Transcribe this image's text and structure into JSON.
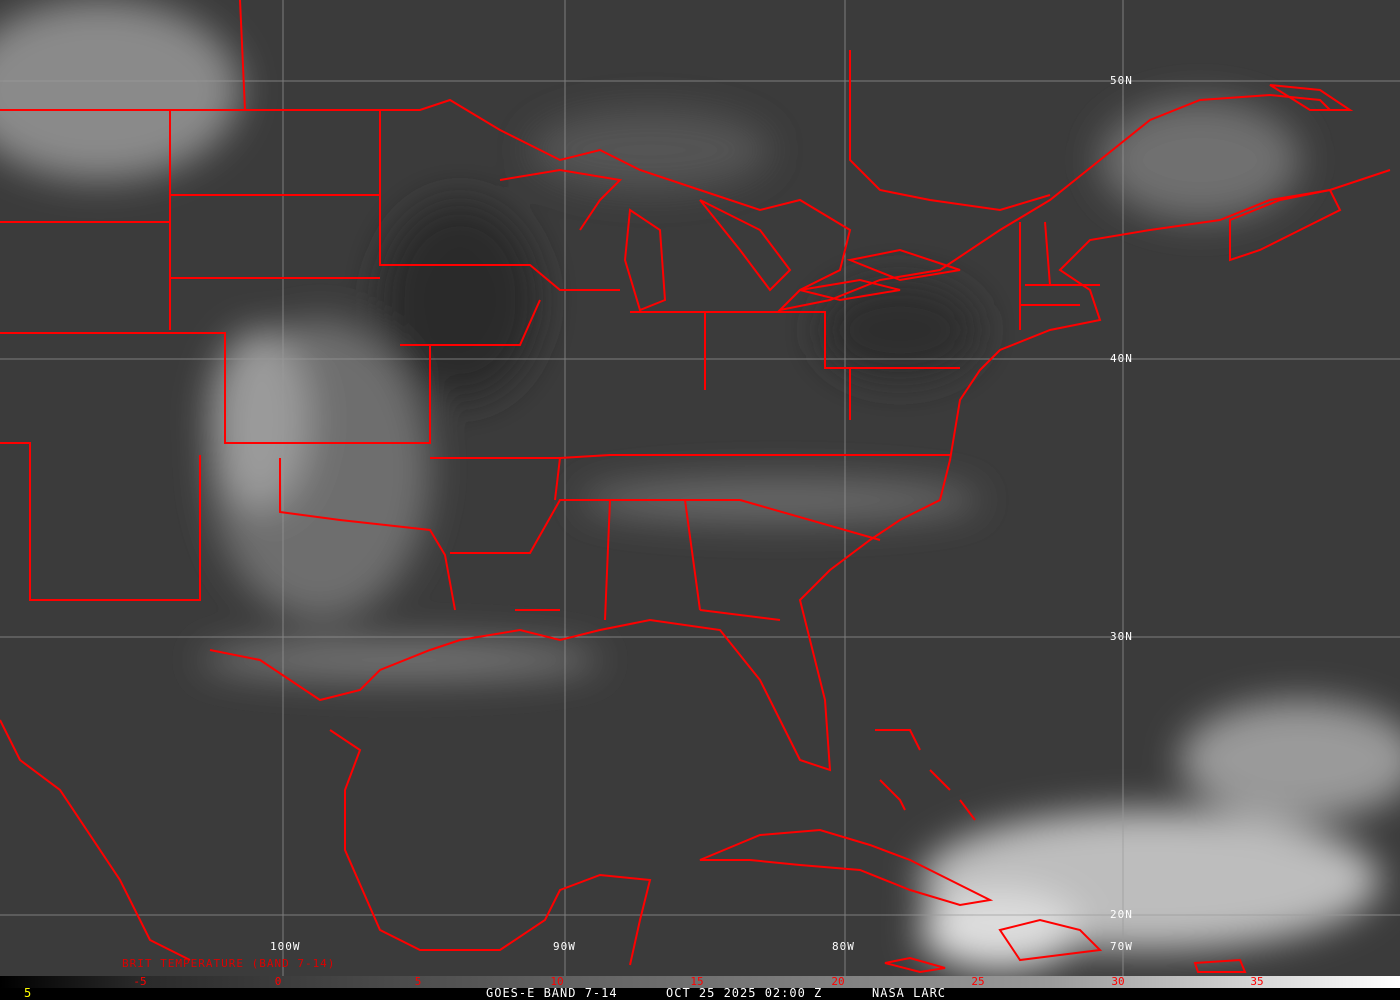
{
  "map": {
    "background_color": "#3a3a3a",
    "boundary_color": "#ff0000",
    "grid_color": "#9a9a9a",
    "lon_labels": [
      "100W",
      "90W",
      "80W",
      "70W"
    ],
    "lat_labels": [
      "50N",
      "40N",
      "30N",
      "20N"
    ]
  },
  "colorbar": {
    "product_label": "BRIT TEMPERATURE (BAND 7-14)",
    "ticks": [
      "-5",
      "0",
      "5",
      "10",
      "15",
      "20",
      "25",
      "30",
      "35"
    ],
    "left_value": "5"
  },
  "footer": {
    "satellite": "GOES-E BAND 7-14",
    "datetime": "OCT 25 2025 02:00 Z",
    "source": "NASA LARC"
  }
}
